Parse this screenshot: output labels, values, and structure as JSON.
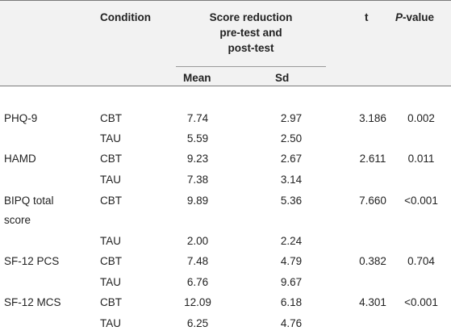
{
  "header": {
    "condition": "Condition",
    "score_reduction_line1": "Score reduction",
    "score_reduction_line2": "pre-test and",
    "score_reduction_line3": "post-test",
    "t": "t",
    "p_value_italic": "P",
    "p_value_suffix": "-value",
    "mean": "Mean",
    "sd": "Sd"
  },
  "rows": [
    {
      "label": "PHQ-9",
      "condition": "CBT",
      "mean": "7.74",
      "sd": "2.97",
      "t": "3.186",
      "p": "0.002"
    },
    {
      "label": "",
      "condition": "TAU",
      "mean": "5.59",
      "sd": "2.50",
      "t": "",
      "p": ""
    },
    {
      "label": "HAMD",
      "condition": "CBT",
      "mean": "9.23",
      "sd": "2.67",
      "t": "2.611",
      "p": "0.011"
    },
    {
      "label": "",
      "condition": "TAU",
      "mean": "7.38",
      "sd": "3.14",
      "t": "",
      "p": ""
    },
    {
      "label": "BIPQ total",
      "label2": "score",
      "condition": "CBT",
      "mean": "9.89",
      "sd": "5.36",
      "t": "7.660",
      "p": "<0.001"
    },
    {
      "label": "",
      "condition": "TAU",
      "mean": "2.00",
      "sd": "2.24",
      "t": "",
      "p": ""
    },
    {
      "label": "SF-12 PCS",
      "condition": "CBT",
      "mean": "7.48",
      "sd": "4.79",
      "t": "0.382",
      "p": "0.704"
    },
    {
      "label": "",
      "condition": "TAU",
      "mean": "6.76",
      "sd": "9.67",
      "t": "",
      "p": ""
    },
    {
      "label": "SF-12 MCS",
      "condition": "CBT",
      "mean": "12.09",
      "sd": "6.18",
      "t": "4.301",
      "p": "<0.001"
    },
    {
      "label": "",
      "condition": "TAU",
      "mean": "6.25",
      "sd": "4.76",
      "t": "",
      "p": ""
    }
  ]
}
